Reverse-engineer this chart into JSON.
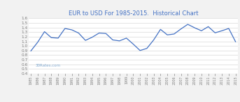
{
  "title": "EUR to USD For 1985-2015.  Historical Chart",
  "years": [
    1985,
    1986,
    1987,
    1988,
    1989,
    1990,
    1991,
    1992,
    1993,
    1994,
    1995,
    1996,
    1997,
    1998,
    1999,
    2000,
    2001,
    2002,
    2003,
    2004,
    2005,
    2006,
    2007,
    2008,
    2009,
    2010,
    2011,
    2012,
    2013,
    2014,
    2015
  ],
  "values": [
    0.89,
    1.08,
    1.31,
    1.18,
    1.17,
    1.38,
    1.35,
    1.28,
    1.12,
    1.19,
    1.28,
    1.27,
    1.13,
    1.11,
    1.17,
    1.04,
    0.9,
    0.945,
    1.13,
    1.36,
    1.24,
    1.26,
    1.37,
    1.47,
    1.395,
    1.33,
    1.42,
    1.285,
    1.33,
    1.38,
    1.09
  ],
  "line_color": "#4472c4",
  "background_color": "#f2f2f2",
  "grid_color": "#d9d9d9",
  "plot_bg": "#ffffff",
  "ylim": [
    0.4,
    1.6
  ],
  "yticks": [
    0.4,
    0.5,
    0.6,
    0.7,
    0.8,
    0.9,
    1.0,
    1.1,
    1.2,
    1.3,
    1.4,
    1.5,
    1.6
  ],
  "watermark": "30Rates.com",
  "title_color": "#4472c4",
  "tick_color": "#808080",
  "watermark_color": "#7fa8d0"
}
